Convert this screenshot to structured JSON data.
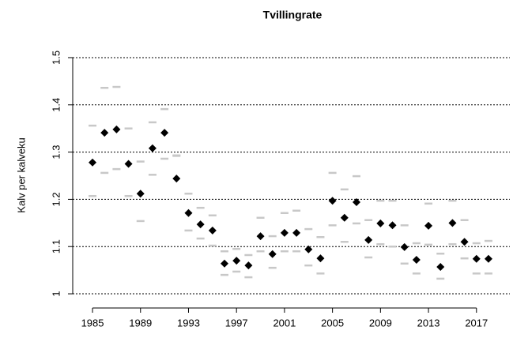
{
  "chart_data": {
    "type": "scatter",
    "title": "Tvillingrate",
    "y_label": "Kalv per kalveku",
    "x": [
      1985,
      1986,
      1987,
      1988,
      1989,
      1990,
      1991,
      1992,
      1993,
      1994,
      1995,
      1996,
      1997,
      1998,
      1999,
      2000,
      2001,
      2002,
      2003,
      2004,
      2005,
      2006,
      2007,
      2008,
      2009,
      2010,
      2011,
      2012,
      2013,
      2014,
      2015,
      2016,
      2017,
      2018
    ],
    "series": [
      {
        "color": "#c8c8c8",
        "marker": "dash",
        "values": [
          1.356,
          1.436,
          1.438,
          1.35,
          1.28,
          1.363,
          1.391,
          1.293,
          1.212,
          1.182,
          1.166,
          1.09,
          1.095,
          1.082,
          1.161,
          1.122,
          1.171,
          1.176,
          1.137,
          1.12,
          1.256,
          1.221,
          1.249,
          1.156,
          1.197,
          1.197,
          1.145,
          1.107,
          1.191,
          1.085,
          1.197,
          1.156,
          1.107,
          1.112
        ]
      },
      {
        "color": "#c8c8c8",
        "marker": "dash",
        "values": [
          1.207,
          1.256,
          1.264,
          1.207,
          1.154,
          1.252,
          1.286,
          1.292,
          1.134,
          1.117,
          1.102,
          1.04,
          1.047,
          1.035,
          1.09,
          1.055,
          1.09,
          1.09,
          1.06,
          1.043,
          1.145,
          1.11,
          1.149,
          1.077,
          1.105,
          1.1,
          1.064,
          1.043,
          1.104,
          1.032,
          1.105,
          1.075,
          1.043,
          1.043
        ]
      },
      {
        "color": "#000000",
        "marker": "diamond",
        "values": [
          1.278,
          1.341,
          1.348,
          1.275,
          1.212,
          1.308,
          1.341,
          1.244,
          1.171,
          1.147,
          1.134,
          1.064,
          1.07,
          1.06,
          1.122,
          1.084,
          1.129,
          1.129,
          1.094,
          1.075,
          1.197,
          1.161,
          1.194,
          1.114,
          1.149,
          1.145,
          1.099,
          1.072,
          1.144,
          1.057,
          1.15,
          1.11,
          1.074,
          1.074
        ]
      }
    ],
    "xlim": [
      1983.68,
      2019.32
    ],
    "ylim": [
      0.98,
      1.52
    ],
    "xticks": [
      1985,
      1989,
      1993,
      1997,
      2001,
      2005,
      2009,
      2013,
      2017
    ],
    "yticks": [
      1,
      1.1,
      1.2,
      1.3,
      1.4,
      1.5
    ],
    "grid": true
  }
}
